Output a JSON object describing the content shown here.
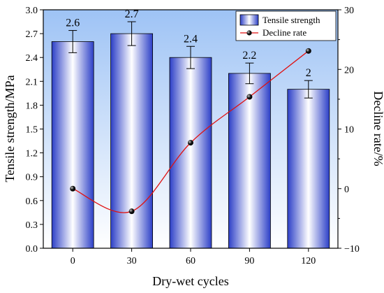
{
  "chart_data": {
    "type": "bar",
    "categories": [
      "0",
      "30",
      "60",
      "90",
      "120"
    ],
    "xlabel": "Dry-wet cycles",
    "ylabel": "Tensile strength/MPa",
    "y2label": "Decline rate/%",
    "ylim": [
      0.0,
      3.0
    ],
    "y2lim": [
      -10,
      30
    ],
    "yticks": [
      "0.0",
      "0.3",
      "0.6",
      "0.9",
      "1.2",
      "1.5",
      "1.8",
      "2.1",
      "2.4",
      "2.7",
      "3.0"
    ],
    "y2ticks": [
      "−10",
      "0",
      "10",
      "20",
      "30"
    ],
    "grid": false,
    "legend_position": "top-right",
    "series": [
      {
        "name": "Tensile strength",
        "type": "bar",
        "axis": "left",
        "values": [
          2.6,
          2.7,
          2.4,
          2.2,
          2.0
        ],
        "labels": [
          "2.6",
          "2.7",
          "2.4",
          "2.2",
          "2"
        ],
        "error": [
          0.14,
          0.15,
          0.14,
          0.13,
          0.11
        ]
      },
      {
        "name": "Decline rate",
        "type": "line",
        "axis": "right",
        "smooth": true,
        "values": [
          0,
          -3.8,
          7.7,
          15.4,
          23.1
        ]
      }
    ],
    "colors": {
      "bar_edge": "#2c3fc7",
      "bar_center": "#ffffff",
      "line": "#e01010",
      "marker": "#111111",
      "plot_bg_top": "#9ec3f5",
      "plot_bg_bottom": "#ffffff"
    }
  }
}
